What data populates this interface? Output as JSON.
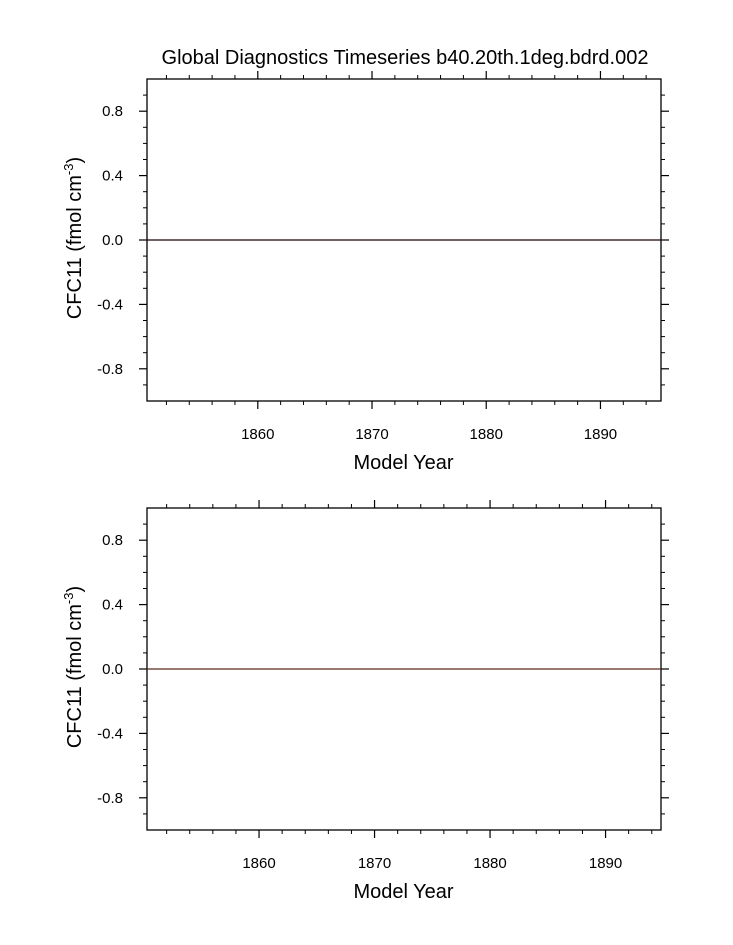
{
  "title": "Global Diagnostics Timeseries b40.20th.1deg.bdrd.002",
  "chart_data": [
    {
      "type": "line",
      "xlabel": "Model Year",
      "ylabel": "CFC11 (fmol cm",
      "ylabel_superscript": "-3",
      "ylabel_close": ")",
      "xlim": [
        1850.3,
        1895.3
      ],
      "ylim": [
        -1.0,
        1.0
      ],
      "x_ticks": [
        1860,
        1870,
        1880,
        1890
      ],
      "x_tick_labels": [
        "1860",
        "1870",
        "1880",
        "1890"
      ],
      "y_ticks": [
        0.8,
        0.4,
        0.0,
        -0.4,
        -0.8
      ],
      "y_tick_labels": [
        "0.8",
        "0.4",
        "0.0",
        "-0.4",
        "-0.8"
      ],
      "grid": false,
      "series": [
        {
          "color": "#1a0000",
          "x": [
            1850.3,
            1895.3
          ],
          "y": [
            0.0,
            0.0
          ]
        }
      ]
    },
    {
      "type": "line",
      "xlabel": "Model Year",
      "ylabel": "CFC11 (fmol cm",
      "ylabel_superscript": "-3",
      "ylabel_close": ")",
      "xlim": [
        1850.3,
        1894.8
      ],
      "ylim": [
        -1.0,
        1.0
      ],
      "x_ticks": [
        1860,
        1870,
        1880,
        1890
      ],
      "x_tick_labels": [
        "1860",
        "1870",
        "1880",
        "1890"
      ],
      "y_ticks": [
        0.8,
        0.4,
        0.0,
        -0.4,
        -0.8
      ],
      "y_tick_labels": [
        "0.8",
        "0.4",
        "0.0",
        "-0.4",
        "-0.8"
      ],
      "grid": false,
      "series": [
        {
          "color": "#5a2a1a",
          "x": [
            1850.3,
            1894.8
          ],
          "y": [
            0.0,
            0.0
          ]
        }
      ]
    }
  ]
}
